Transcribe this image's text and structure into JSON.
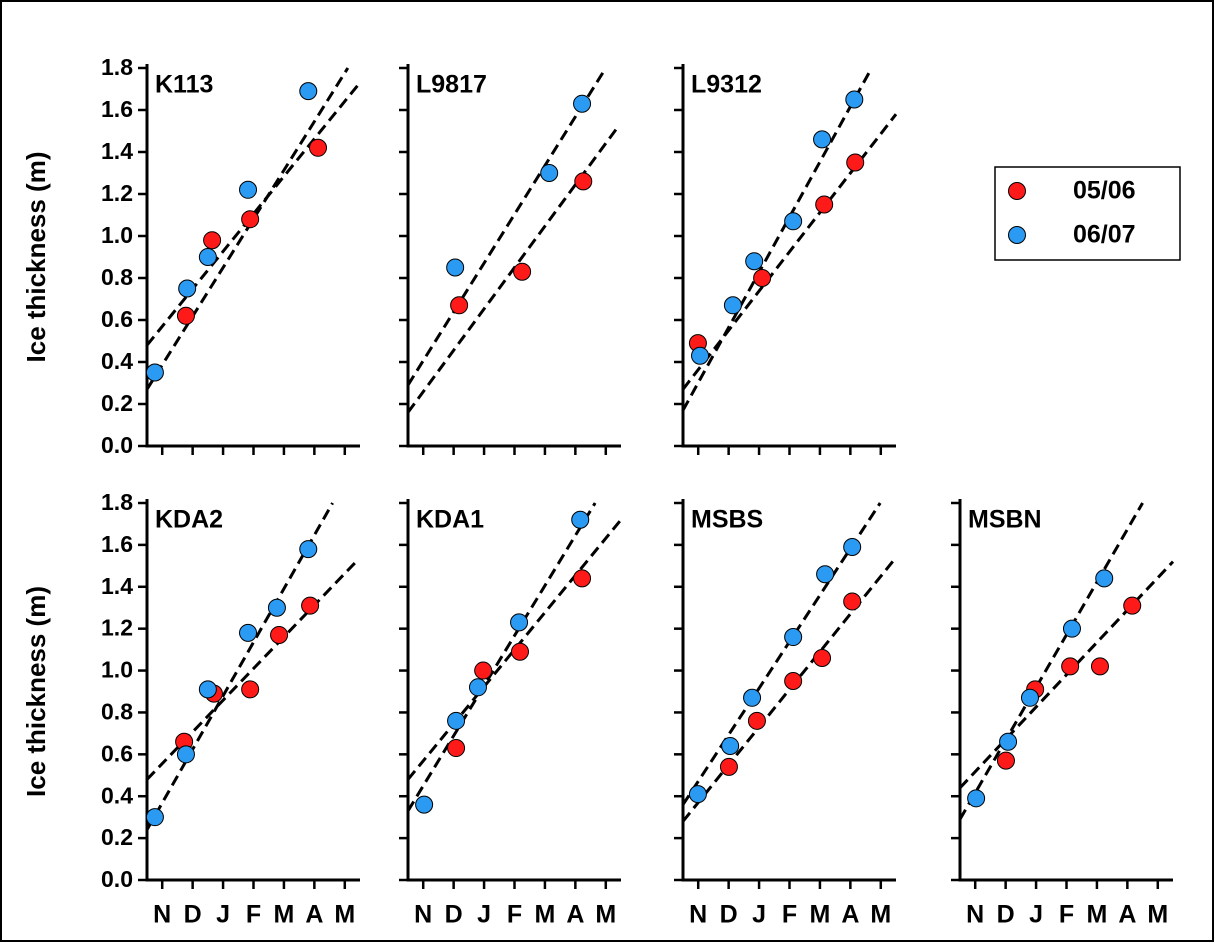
{
  "chart_data": [
    {
      "type": "scatter",
      "title": "K113",
      "ylabel": "Ice thickness (m)",
      "ytick_labels": true,
      "xtick_labels": false,
      "xlim": [
        0,
        7
      ],
      "ylim": [
        0,
        1.8
      ],
      "xticks": [
        {
          "value": 0.5,
          "label": "N"
        },
        {
          "value": 1.5,
          "label": "D"
        },
        {
          "value": 2.5,
          "label": "J"
        },
        {
          "value": 3.5,
          "label": "F"
        },
        {
          "value": 4.5,
          "label": "M"
        },
        {
          "value": 5.5,
          "label": "A"
        },
        {
          "value": 6.5,
          "label": "M"
        }
      ],
      "yticks": [
        {
          "value": 0,
          "label": "0.0"
        },
        0.2,
        0.4,
        0.6,
        0.8,
        {
          "value": 1,
          "label": "1.0"
        },
        1.2,
        1.4,
        1.6,
        1.8
      ],
      "series": [
        {
          "name": "05/06",
          "color": "#ff1a1a",
          "x": [
            1.28,
            2.14,
            3.39,
            5.62
          ],
          "values": [
            0.62,
            0.98,
            1.08,
            1.42
          ],
          "fit_x": [
            0,
            6.94
          ],
          "fit_y": [
            0.48,
            1.72
          ]
        },
        {
          "name": "06/07",
          "color": "#2b9af3",
          "x": [
            0.26,
            1.32,
            2.0,
            3.32,
            5.3
          ],
          "values": [
            0.35,
            0.75,
            0.9,
            1.22,
            1.69
          ],
          "fit_x": [
            0,
            6.6
          ],
          "fit_y": [
            0.27,
            1.8
          ]
        }
      ]
    },
    {
      "type": "scatter",
      "title": "L9817",
      "ytick_labels": false,
      "xtick_labels": false,
      "xlim": [
        0,
        7
      ],
      "ylim": [
        0,
        1.8
      ],
      "xticks": [
        {
          "value": 0.5,
          "label": "N"
        },
        {
          "value": 1.5,
          "label": "D"
        },
        {
          "value": 2.5,
          "label": "J"
        },
        {
          "value": 3.5,
          "label": "F"
        },
        {
          "value": 4.5,
          "label": "M"
        },
        {
          "value": 5.5,
          "label": "A"
        },
        {
          "value": 6.5,
          "label": "M"
        }
      ],
      "yticks": [
        0,
        0.2,
        0.4,
        0.6,
        0.8,
        1,
        1.2,
        1.4,
        1.6,
        1.8
      ],
      "series": [
        {
          "name": "05/06",
          "color": "#ff1a1a",
          "x": [
            1.68,
            3.75,
            5.76
          ],
          "values": [
            0.67,
            0.83,
            1.26
          ],
          "fit_x": [
            0,
            6.9
          ],
          "fit_y": [
            0.16,
            1.52
          ]
        },
        {
          "name": "06/07",
          "color": "#2b9af3",
          "x": [
            1.55,
            4.64,
            5.72
          ],
          "values": [
            0.85,
            1.3,
            1.63
          ],
          "fit_x": [
            0,
            6.5
          ],
          "fit_y": [
            0.29,
            1.8
          ]
        }
      ]
    },
    {
      "type": "scatter",
      "title": "L9312",
      "ytick_labels": false,
      "xtick_labels": false,
      "legend": "right",
      "xlim": [
        0,
        7
      ],
      "ylim": [
        0,
        1.8
      ],
      "xticks": [
        {
          "value": 0.5,
          "label": "N"
        },
        {
          "value": 1.5,
          "label": "D"
        },
        {
          "value": 2.5,
          "label": "J"
        },
        {
          "value": 3.5,
          "label": "F"
        },
        {
          "value": 4.5,
          "label": "M"
        },
        {
          "value": 5.5,
          "label": "A"
        },
        {
          "value": 6.5,
          "label": "M"
        }
      ],
      "yticks": [
        0,
        0.2,
        0.4,
        0.6,
        0.8,
        1,
        1.2,
        1.4,
        1.6,
        1.8
      ],
      "series": [
        {
          "name": "05/06",
          "color": "#ff1a1a",
          "x": [
            0.49,
            2.6,
            4.64,
            5.66
          ],
          "values": [
            0.49,
            0.8,
            1.15,
            1.35
          ],
          "fit_x": [
            0,
            7
          ],
          "fit_y": [
            0.27,
            1.58
          ]
        },
        {
          "name": "06/07",
          "color": "#2b9af3",
          "x": [
            0.56,
            1.64,
            2.34,
            3.62,
            4.57,
            5.63
          ],
          "values": [
            0.43,
            0.67,
            0.88,
            1.07,
            1.46,
            1.65
          ],
          "fit_x": [
            0,
            6.2
          ],
          "fit_y": [
            0.17,
            1.8
          ]
        }
      ]
    },
    {
      "type": "scatter",
      "title": "KDA2",
      "ylabel": "Ice thickness (m)",
      "ytick_labels": true,
      "xtick_labels": true,
      "xlim": [
        0,
        7
      ],
      "ylim": [
        0,
        1.8
      ],
      "xticks": [
        {
          "value": 0.5,
          "label": "N"
        },
        {
          "value": 1.5,
          "label": "D"
        },
        {
          "value": 2.5,
          "label": "J"
        },
        {
          "value": 3.5,
          "label": "F"
        },
        {
          "value": 4.5,
          "label": "M"
        },
        {
          "value": 5.5,
          "label": "A"
        },
        {
          "value": 6.5,
          "label": "M"
        }
      ],
      "yticks": [
        {
          "value": 0,
          "label": "0.0"
        },
        0.2,
        0.4,
        0.6,
        0.8,
        {
          "value": 1,
          "label": "1.0"
        },
        1.2,
        1.4,
        1.6,
        1.8
      ],
      "series": [
        {
          "name": "05/06",
          "color": "#ff1a1a",
          "x": [
            1.22,
            2.2,
            3.39,
            4.34,
            5.36
          ],
          "values": [
            0.66,
            0.89,
            0.91,
            1.17,
            1.31
          ],
          "fit_x": [
            0,
            6.94
          ],
          "fit_y": [
            0.48,
            1.53
          ]
        },
        {
          "name": "06/07",
          "color": "#2b9af3",
          "x": [
            0.26,
            1.28,
            2.0,
            3.32,
            4.27,
            5.3
          ],
          "values": [
            0.3,
            0.6,
            0.91,
            1.18,
            1.3,
            1.58
          ],
          "fit_x": [
            0,
            6.1
          ],
          "fit_y": [
            0.24,
            1.8
          ]
        }
      ]
    },
    {
      "type": "scatter",
      "title": "KDA1",
      "ytick_labels": false,
      "xtick_labels": true,
      "xlim": [
        0,
        7
      ],
      "ylim": [
        0,
        1.8
      ],
      "xticks": [
        {
          "value": 0.5,
          "label": "N"
        },
        {
          "value": 1.5,
          "label": "D"
        },
        {
          "value": 2.5,
          "label": "J"
        },
        {
          "value": 3.5,
          "label": "F"
        },
        {
          "value": 4.5,
          "label": "M"
        },
        {
          "value": 5.5,
          "label": "A"
        },
        {
          "value": 6.5,
          "label": "M"
        }
      ],
      "yticks": [
        0,
        0.2,
        0.4,
        0.6,
        0.8,
        1,
        1.2,
        1.4,
        1.6,
        1.8
      ],
      "series": [
        {
          "name": "05/06",
          "color": "#ff1a1a",
          "x": [
            1.58,
            2.47,
            3.68,
            5.72
          ],
          "values": [
            0.63,
            1.0,
            1.09,
            1.44
          ],
          "fit_x": [
            0,
            7
          ],
          "fit_y": [
            0.48,
            1.72
          ]
        },
        {
          "name": "06/07",
          "color": "#2b9af3",
          "x": [
            0.53,
            1.58,
            2.3,
            3.65,
            5.66
          ],
          "values": [
            0.36,
            0.76,
            0.92,
            1.23,
            1.72
          ],
          "fit_x": [
            0,
            6.15
          ],
          "fit_y": [
            0.33,
            1.8
          ]
        }
      ]
    },
    {
      "type": "scatter",
      "title": "MSBS",
      "ytick_labels": false,
      "xtick_labels": true,
      "xlim": [
        0,
        7
      ],
      "ylim": [
        0,
        1.8
      ],
      "xticks": [
        {
          "value": 0.5,
          "label": "N"
        },
        {
          "value": 1.5,
          "label": "D"
        },
        {
          "value": 2.5,
          "label": "J"
        },
        {
          "value": 3.5,
          "label": "F"
        },
        {
          "value": 4.5,
          "label": "M"
        },
        {
          "value": 5.5,
          "label": "A"
        },
        {
          "value": 6.5,
          "label": "M"
        }
      ],
      "yticks": [
        0,
        0.2,
        0.4,
        0.6,
        0.8,
        1,
        1.2,
        1.4,
        1.6,
        1.8
      ],
      "series": [
        {
          "name": "05/06",
          "color": "#ff1a1a",
          "x": [
            1.51,
            2.43,
            3.62,
            4.57,
            5.56
          ],
          "values": [
            0.54,
            0.76,
            0.95,
            1.06,
            1.33
          ],
          "fit_x": [
            0,
            7
          ],
          "fit_y": [
            0.28,
            1.54
          ]
        },
        {
          "name": "06/07",
          "color": "#2b9af3",
          "x": [
            0.49,
            1.55,
            2.27,
            3.62,
            4.67,
            5.56
          ],
          "values": [
            0.41,
            0.64,
            0.87,
            1.16,
            1.46,
            1.59
          ],
          "fit_x": [
            0,
            6.48
          ],
          "fit_y": [
            0.36,
            1.8
          ]
        }
      ]
    },
    {
      "type": "scatter",
      "title": "MSBN",
      "ytick_labels": false,
      "xtick_labels": true,
      "xlim": [
        0,
        7
      ],
      "ylim": [
        0,
        1.8
      ],
      "xticks": [
        {
          "value": 0.5,
          "label": "N"
        },
        {
          "value": 1.5,
          "label": "D"
        },
        {
          "value": 2.5,
          "label": "J"
        },
        {
          "value": 3.5,
          "label": "F"
        },
        {
          "value": 4.5,
          "label": "M"
        },
        {
          "value": 5.5,
          "label": "A"
        },
        {
          "value": 6.5,
          "label": "M"
        }
      ],
      "yticks": [
        0,
        0.2,
        0.4,
        0.6,
        0.8,
        1,
        1.2,
        1.4,
        1.6,
        1.8
      ],
      "series": [
        {
          "name": "05/06",
          "color": "#ff1a1a",
          "x": [
            1.51,
            2.47,
            3.62,
            4.6,
            5.66
          ],
          "values": [
            0.57,
            0.91,
            1.02,
            1.02,
            1.31
          ],
          "fit_x": [
            0,
            7
          ],
          "fit_y": [
            0.44,
            1.52
          ]
        },
        {
          "name": "06/07",
          "color": "#2b9af3",
          "x": [
            0.53,
            1.58,
            2.3,
            3.68,
            4.74
          ],
          "values": [
            0.39,
            0.66,
            0.87,
            1.2,
            1.44
          ],
          "fit_x": [
            0,
            6.0
          ],
          "fit_y": [
            0.29,
            1.8
          ]
        }
      ]
    }
  ]
}
